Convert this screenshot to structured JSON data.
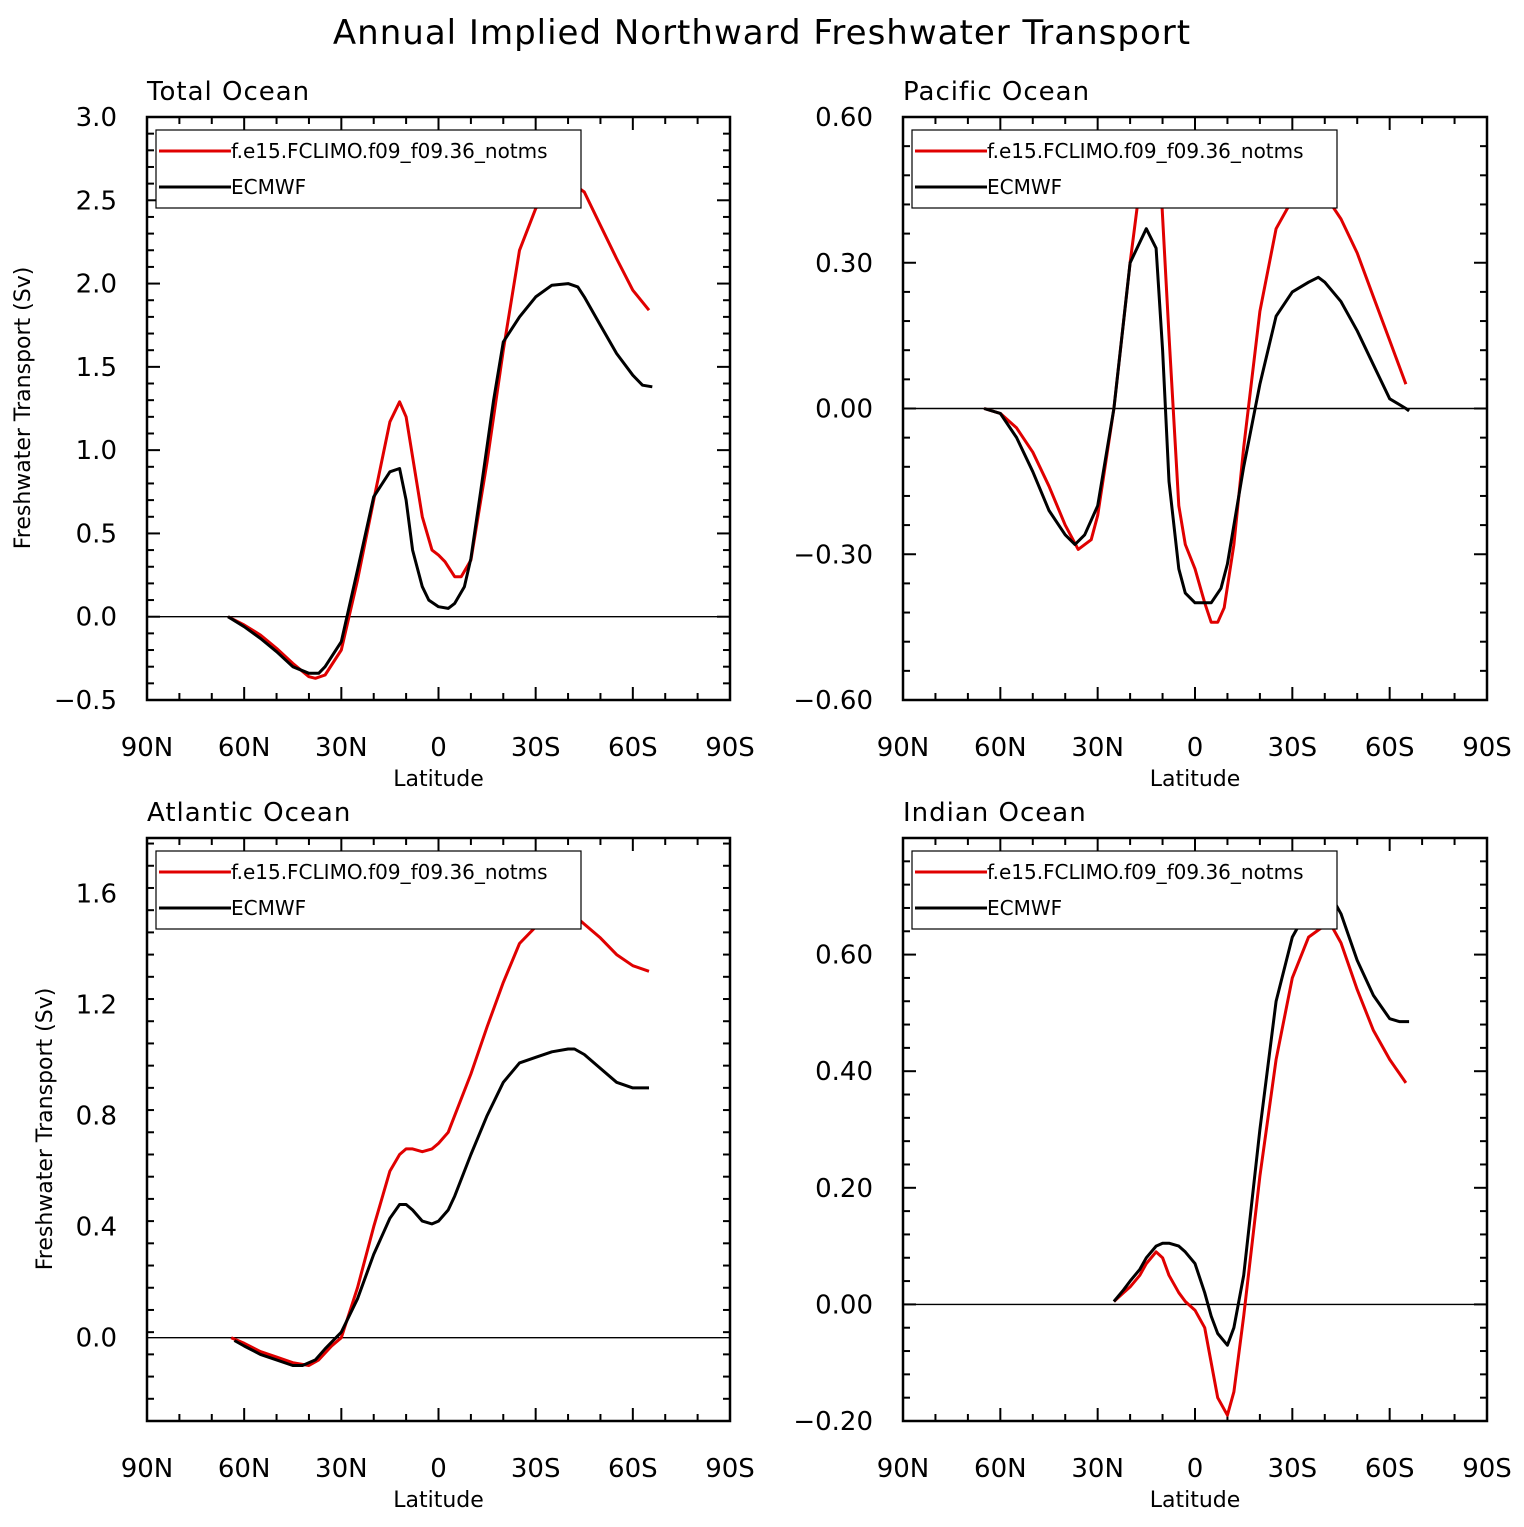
{
  "title": "Annual Implied Northward Freshwater Transport",
  "colors": {
    "model": "#e00000",
    "obs": "#000000"
  },
  "chart_data": [
    {
      "type": "line",
      "title": "Total Ocean",
      "xlabel": "Latitude",
      "ylabel": "Freshwater Transport (Sv)",
      "xlim": [
        90,
        -90
      ],
      "ylim": [
        -0.5,
        3.0
      ],
      "xticks": [
        90,
        60,
        30,
        0,
        -30,
        -60,
        -90
      ],
      "xticklabels": [
        "90N",
        "60N",
        "30N",
        "0",
        "30S",
        "60S",
        "90S"
      ],
      "yticks": [
        -0.5,
        0,
        0.5,
        1,
        1.5,
        2,
        2.5,
        3
      ],
      "yticklabels": [
        "−0.5",
        "0.0",
        "0.5",
        "1.0",
        "1.5",
        "2.0",
        "2.5",
        "3.0"
      ],
      "legend_position": "top-left",
      "series": [
        {
          "name": "f.e15.FCLIMO.f09_f09.36_notms",
          "color": "#e00000",
          "x": [
            65,
            60,
            55,
            50,
            45,
            40,
            38,
            35,
            30,
            25,
            20,
            15,
            12,
            10,
            5,
            2,
            0,
            -2,
            -5,
            -7,
            -10,
            -15,
            -20,
            -25,
            -30,
            -35,
            -40,
            -45,
            -50,
            -55,
            -60,
            -65
          ],
          "y": [
            0,
            -0.05,
            -0.11,
            -0.19,
            -0.28,
            -0.36,
            -0.37,
            -0.35,
            -0.2,
            0.22,
            0.7,
            1.17,
            1.29,
            1.2,
            0.6,
            0.4,
            0.37,
            0.33,
            0.24,
            0.24,
            0.34,
            0.93,
            1.6,
            2.2,
            2.45,
            2.58,
            2.62,
            2.55,
            2.35,
            2.15,
            1.96,
            1.84
          ]
        },
        {
          "name": "ECMWF",
          "color": "#000000",
          "x": [
            65,
            60,
            55,
            50,
            45,
            40,
            37,
            35,
            30,
            25,
            20,
            15,
            12,
            10,
            8,
            5,
            3,
            0,
            -3,
            -5,
            -8,
            -10,
            -13,
            -17,
            -20,
            -25,
            -30,
            -35,
            -40,
            -43,
            -45,
            -50,
            -55,
            -60,
            -63,
            -66
          ],
          "y": [
            0,
            -0.06,
            -0.13,
            -0.21,
            -0.3,
            -0.34,
            -0.34,
            -0.3,
            -0.15,
            0.28,
            0.72,
            0.87,
            0.89,
            0.7,
            0.4,
            0.18,
            0.1,
            0.06,
            0.05,
            0.08,
            0.18,
            0.35,
            0.75,
            1.3,
            1.65,
            1.8,
            1.92,
            1.99,
            2.0,
            1.98,
            1.92,
            1.75,
            1.58,
            1.45,
            1.39,
            1.38
          ]
        }
      ]
    },
    {
      "type": "line",
      "title": "Pacific Ocean",
      "xlabel": "Latitude",
      "ylabel": "",
      "xlim": [
        90,
        -90
      ],
      "ylim": [
        -0.6,
        0.6
      ],
      "xticks": [
        90,
        60,
        30,
        0,
        -30,
        -60,
        -90
      ],
      "xticklabels": [
        "90N",
        "60N",
        "30N",
        "0",
        "30S",
        "60S",
        "90S"
      ],
      "yticks": [
        -0.6,
        -0.3,
        0,
        0.3,
        0.6
      ],
      "yticklabels": [
        "−0.60",
        "−0.30",
        "0.00",
        "0.30",
        "0.60"
      ],
      "legend_position": "top-left",
      "series": [
        {
          "name": "f.e15.FCLIMO.f09_f09.36_notms",
          "color": "#e00000",
          "x": [
            65,
            60,
            55,
            50,
            45,
            40,
            36,
            32,
            30,
            25,
            20,
            16,
            13,
            11,
            8,
            5,
            3,
            0,
            -3,
            -5,
            -7,
            -9,
            -12,
            -15,
            -20,
            -25,
            -30,
            -35,
            -38,
            -40,
            -45,
            -50,
            -55,
            -60,
            -65
          ],
          "y": [
            0,
            -0.01,
            -0.04,
            -0.09,
            -0.16,
            -0.24,
            -0.29,
            -0.27,
            -0.22,
            0,
            0.3,
            0.51,
            0.57,
            0.52,
            0.15,
            -0.2,
            -0.28,
            -0.33,
            -0.4,
            -0.44,
            -0.44,
            -0.41,
            -0.28,
            -0.08,
            0.2,
            0.37,
            0.43,
            0.45,
            0.45,
            0.44,
            0.39,
            0.32,
            0.23,
            0.14,
            0.05
          ]
        },
        {
          "name": "ECMWF",
          "color": "#000000",
          "x": [
            65,
            60,
            55,
            50,
            45,
            40,
            37,
            34,
            30,
            25,
            20,
            15,
            12,
            10,
            8,
            5,
            3,
            0,
            -3,
            -5,
            -8,
            -10,
            -15,
            -20,
            -25,
            -30,
            -35,
            -38,
            -40,
            -45,
            -50,
            -55,
            -60,
            -65,
            -66
          ],
          "y": [
            0,
            -0.01,
            -0.06,
            -0.13,
            -0.21,
            -0.26,
            -0.28,
            -0.26,
            -0.2,
            0,
            0.3,
            0.37,
            0.33,
            0.12,
            -0.15,
            -0.33,
            -0.38,
            -0.4,
            -0.4,
            -0.4,
            -0.37,
            -0.32,
            -0.12,
            0.05,
            0.19,
            0.24,
            0.26,
            0.27,
            0.26,
            0.22,
            0.16,
            0.09,
            0.02,
            0,
            -0.005
          ]
        }
      ]
    },
    {
      "type": "line",
      "title": "Atlantic Ocean",
      "xlabel": "Latitude",
      "ylabel": "Freshwater Transport (Sv)",
      "xlim": [
        90,
        -90
      ],
      "ylim": [
        -0.3,
        1.8
      ],
      "xticks": [
        90,
        60,
        30,
        0,
        -30,
        -60,
        -90
      ],
      "xticklabels": [
        "90N",
        "60N",
        "30N",
        "0",
        "30S",
        "60S",
        "90S"
      ],
      "yticks": [
        0,
        0.4,
        0.8,
        1.2,
        1.6
      ],
      "yticklabels": [
        "0.0",
        "0.4",
        "0.8",
        "1.2",
        "1.6"
      ],
      "legend_position": "top-left",
      "series": [
        {
          "name": "f.e15.FCLIMO.f09_f09.36_notms",
          "color": "#e00000",
          "x": [
            64,
            60,
            55,
            50,
            45,
            40,
            37,
            33,
            30,
            25,
            20,
            15,
            12,
            10,
            8,
            5,
            2,
            0,
            -3,
            -5,
            -10,
            -15,
            -20,
            -25,
            -30,
            -35,
            -40,
            -43,
            -45,
            -50,
            -55,
            -60,
            -65
          ],
          "y": [
            0,
            -0.02,
            -0.05,
            -0.07,
            -0.09,
            -0.1,
            -0.08,
            -0.03,
            0,
            0.18,
            0.4,
            0.6,
            0.66,
            0.68,
            0.68,
            0.67,
            0.68,
            0.7,
            0.74,
            0.8,
            0.95,
            1.12,
            1.28,
            1.42,
            1.48,
            1.51,
            1.52,
            1.51,
            1.49,
            1.44,
            1.38,
            1.34,
            1.32
          ]
        },
        {
          "name": "ECMWF",
          "color": "#000000",
          "x": [
            63,
            60,
            55,
            50,
            45,
            42,
            38,
            35,
            30,
            25,
            20,
            15,
            12,
            10,
            8,
            5,
            2,
            0,
            -3,
            -5,
            -10,
            -15,
            -20,
            -25,
            -30,
            -35,
            -40,
            -42,
            -45,
            -50,
            -55,
            -60,
            -65
          ],
          "y": [
            -0.01,
            -0.03,
            -0.06,
            -0.08,
            -0.1,
            -0.1,
            -0.08,
            -0.04,
            0.02,
            0.14,
            0.3,
            0.43,
            0.48,
            0.48,
            0.46,
            0.42,
            0.41,
            0.42,
            0.46,
            0.51,
            0.66,
            0.8,
            0.92,
            0.99,
            1.01,
            1.03,
            1.04,
            1.04,
            1.02,
            0.97,
            0.92,
            0.9,
            0.9
          ]
        }
      ]
    },
    {
      "type": "line",
      "title": "Indian Ocean",
      "xlabel": "Latitude",
      "ylabel": "",
      "xlim": [
        90,
        -90
      ],
      "ylim": [
        -0.2,
        0.8
      ],
      "xticks": [
        90,
        60,
        30,
        0,
        -30,
        -60,
        -90
      ],
      "xticklabels": [
        "90N",
        "60N",
        "30N",
        "0",
        "30S",
        "60S",
        "90S"
      ],
      "yticks": [
        -0.2,
        0,
        0.2,
        0.4,
        0.6
      ],
      "yticklabels": [
        "−0.20",
        "0.00",
        "0.40",
        "0.60"
      ],
      "yticklabels_full": [
        "−0.20",
        "0.00",
        "0.20",
        "0.40",
        "0.60"
      ],
      "legend_position": "top-left",
      "series": [
        {
          "name": "f.e15.FCLIMO.f09_f09.36_notms",
          "color": "#e00000",
          "x": [
            25,
            22,
            20,
            17,
            15,
            12,
            10,
            8,
            5,
            3,
            0,
            -3,
            -5,
            -7,
            -10,
            -12,
            -15,
            -20,
            -25,
            -30,
            -35,
            -40,
            -42,
            -45,
            -50,
            -55,
            -60,
            -65
          ],
          "y": [
            0.005,
            0.02,
            0.03,
            0.05,
            0.07,
            0.09,
            0.08,
            0.05,
            0.02,
            0.005,
            -0.01,
            -0.04,
            -0.1,
            -0.16,
            -0.19,
            -0.15,
            -0.02,
            0.22,
            0.42,
            0.56,
            0.63,
            0.65,
            0.65,
            0.62,
            0.54,
            0.47,
            0.42,
            0.38
          ]
        },
        {
          "name": "ECMWF",
          "color": "#000000",
          "x": [
            25,
            22,
            20,
            17,
            15,
            12,
            10,
            8,
            5,
            3,
            0,
            -3,
            -5,
            -7,
            -10,
            -12,
            -15,
            -20,
            -25,
            -30,
            -35,
            -38,
            -40,
            -43,
            -45,
            -50,
            -55,
            -60,
            -63,
            -66
          ],
          "y": [
            0.005,
            0.025,
            0.04,
            0.06,
            0.08,
            0.1,
            0.105,
            0.105,
            0.1,
            0.09,
            0.07,
            0.02,
            -0.02,
            -0.05,
            -0.07,
            -0.04,
            0.05,
            0.3,
            0.52,
            0.63,
            0.68,
            0.7,
            0.7,
            0.69,
            0.67,
            0.59,
            0.53,
            0.49,
            0.485,
            0.485
          ]
        }
      ]
    }
  ]
}
